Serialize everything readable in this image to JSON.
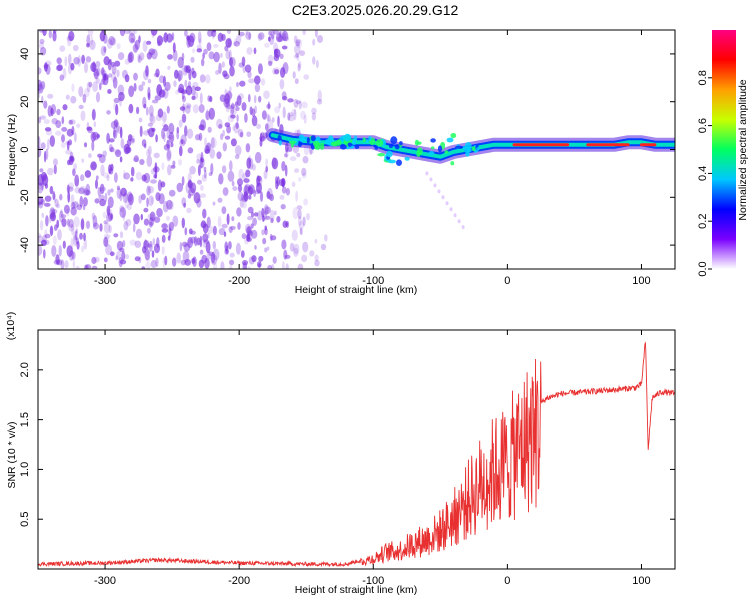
{
  "title": "C2E3.2025.026.20.29.G12",
  "colors": {
    "spectrogram_noise": "#7a30e0",
    "snr_line": "#e83030",
    "frame": "#000000",
    "colorbar": [
      "#ffffff",
      "#7a00ff",
      "#0000ff",
      "#00c8ff",
      "#00ff60",
      "#c8ff00",
      "#ffa000",
      "#ff0000",
      "#ff0080"
    ]
  },
  "chart_data": [
    {
      "type": "heatmap",
      "name": "spectrogram",
      "xlabel": "Height of straight line (km)",
      "ylabel": "Frequency (Hz)",
      "xlim": [
        -350,
        125
      ],
      "ylim": [
        -50,
        50
      ],
      "xticks": [
        -300,
        -200,
        -100,
        0,
        100
      ],
      "yticks": [
        -40,
        -20,
        0,
        20,
        40
      ],
      "colorbar": {
        "label": "Normalized spectral amplitude",
        "range": [
          0,
          1
        ],
        "ticks": [
          "0.0",
          "0.2",
          "0.4",
          "0.6",
          "0.8"
        ]
      },
      "noise_region_x": [
        -350,
        -150
      ],
      "signal_trace": {
        "x": [
          -175,
          -160,
          -140,
          -120,
          -100,
          -90,
          -80,
          -70,
          -60,
          -50,
          -40,
          -30,
          -20,
          -10,
          0,
          20,
          40,
          60,
          80,
          90,
          100,
          110,
          125
        ],
        "y": [
          6,
          4,
          3,
          3,
          3,
          1,
          0,
          -1,
          -2,
          -3,
          -1,
          0,
          1,
          2,
          2,
          2,
          2,
          2,
          2,
          3,
          3,
          2,
          2
        ]
      }
    },
    {
      "type": "line",
      "name": "snr",
      "xlabel": "Height of straight line (km)",
      "ylabel": "SNR (10 * v/v)",
      "y_multiplier": "(x10⁴)",
      "xlim": [
        -350,
        125
      ],
      "ylim": [
        0,
        2.4
      ],
      "xticks": [
        -300,
        -200,
        -100,
        0,
        100
      ],
      "yticks": [
        0.5,
        1.0,
        1.5,
        2.0
      ],
      "series": [
        {
          "x": [
            -350,
            -300,
            -260,
            -200,
            -150,
            -120,
            -100,
            -90,
            -80,
            -70,
            -60,
            -50,
            -40,
            -30,
            -20,
            -10,
            0,
            10,
            20,
            30,
            40,
            60,
            80,
            95,
            100,
            103,
            105,
            108,
            115,
            125
          ],
          "y": [
            0.05,
            0.06,
            0.09,
            0.06,
            0.05,
            0.05,
            0.12,
            0.2,
            0.22,
            0.3,
            0.35,
            0.45,
            0.6,
            0.8,
            1.0,
            1.15,
            1.25,
            1.45,
            1.62,
            1.72,
            1.76,
            1.78,
            1.8,
            1.82,
            1.85,
            2.3,
            1.2,
            1.72,
            1.78,
            1.76
          ]
        }
      ]
    }
  ]
}
